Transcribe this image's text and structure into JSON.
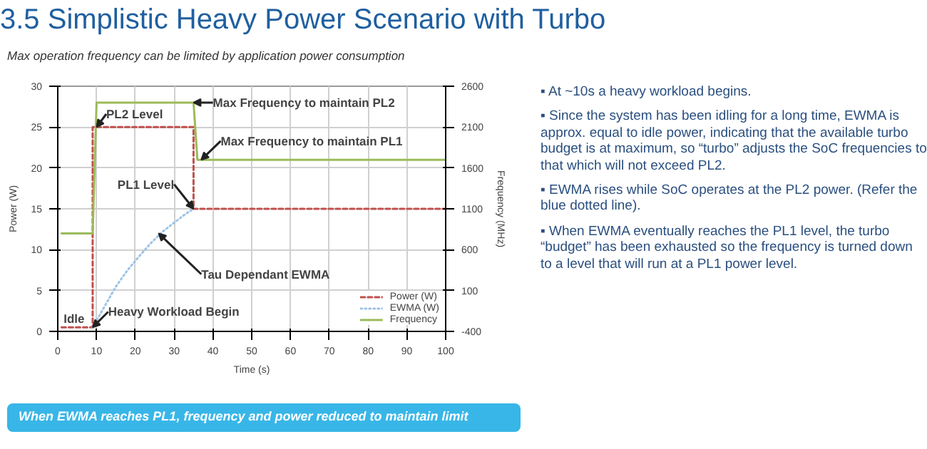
{
  "chart_data": {
    "type": "line",
    "title": "3.5 Simplistic Heavy Power Scenario with Turbo",
    "subtitle": "Max operation frequency can be limited by application power consumption",
    "xlabel": "Time (s)",
    "ylabel": "Power (W)",
    "y2label": "Frequency (MHz)",
    "xlim": [
      0,
      100
    ],
    "xticks": [
      0,
      10,
      20,
      30,
      40,
      50,
      60,
      70,
      80,
      90,
      100
    ],
    "ylim": [
      0,
      30
    ],
    "yticks": [
      0,
      5,
      10,
      15,
      20,
      25,
      30
    ],
    "y2lim": [
      -400,
      2600
    ],
    "y2ticks": [
      -400,
      100,
      600,
      1100,
      1600,
      2100,
      2600
    ],
    "grid": true,
    "legend": "bottom right",
    "marker": "none",
    "series": [
      {
        "name": "Power (W)",
        "color": "#c0504d",
        "line_style": "dashed",
        "x": [
          1,
          9,
          9,
          35,
          35,
          100
        ],
        "values": [
          0.5,
          0.5,
          25,
          25,
          15,
          15
        ]
      },
      {
        "name": "EWMA (W)",
        "color": "#9dc3e6",
        "line_style": "dotted",
        "x": [
          9,
          12,
          15,
          18,
          21,
          24,
          27,
          30,
          33,
          35
        ],
        "values": [
          0.5,
          3,
          5.5,
          7.5,
          9.2,
          10.8,
          12.2,
          13.3,
          14.4,
          15
        ]
      },
      {
        "name": "Frequency",
        "color": "#9bbb59",
        "line_style": "solid",
        "axis": "y2",
        "x": [
          1,
          9,
          10,
          35,
          36,
          100
        ],
        "values": [
          800,
          800,
          2400,
          2400,
          1700,
          1700
        ]
      }
    ],
    "annotations": [
      {
        "text": "PL2 Level",
        "x": 10,
        "y": 25
      },
      {
        "text": "Max Frequency to maintain PL2",
        "x": 35,
        "y": 28
      },
      {
        "text": "Max Frequency to maintain PL1",
        "x": 37,
        "y": 21
      },
      {
        "text": "PL1 Level",
        "x": 35,
        "y": 15
      },
      {
        "text": "Tau Dependant EWMA",
        "x": 26,
        "y": 12
      },
      {
        "text": "Idle",
        "x": 5,
        "y": 0.5
      },
      {
        "text": "Heavy Workload Begin",
        "x": 9,
        "y": 0.5
      },
      "▪ At ~10s a heavy workload begins.",
      "▪ Since the system has been idling for a long time, EWMA  is approx. equal to idle power, indicating that the available turbo budget is at maximum, so “turbo” adjusts the SoC frequencies to that which will not exceed PL2.",
      "▪ EWMA rises while SoC operates at the PL2 power. (Refer the blue dotted line).",
      "▪ When EWMA eventually reaches the PL1 level, the turbo “budget” has been exhausted so the frequency is turned down to a level that will run at a PL1 power level.",
      "When EWMA reaches PL1, frequency and power reduced to maintain limit"
    ]
  }
}
